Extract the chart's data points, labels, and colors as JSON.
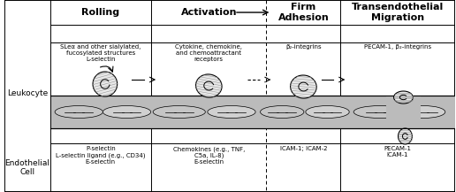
{
  "fig_width": 5.16,
  "fig_height": 2.17,
  "dpi": 100,
  "bg_color": "#ffffff",
  "header_titles": [
    "Rolling",
    "Activation",
    "Firm\nAdhesion",
    "Transendothelial\nMigration"
  ],
  "leukocyte_labels": [
    "SLeα and other sialylated,\nfucosylated structures\nL-selectin",
    "Cytokine, chemokine,\nand chemoattractant\nreceptors",
    "β₂-integrins",
    "PECAM-1, β₂-integrins"
  ],
  "endothelial_labels": [
    "P-selectin\nL-selectin ligand (e.g., CD34)\nE-selectin",
    "Chemokines (e.g., TNF,\nC5a, IL-8)\nE-selectin",
    "ICAM-1; ICAM-2",
    "PECAM-1\nICAM-1"
  ],
  "row_label_leukocyte": "Leukocyte",
  "row_label_endothelial": "Endothelial\nCell",
  "vessel_gray": "#b8b8b8",
  "vessel_light": "#d8d8d8",
  "cell_tile_color": "#c0c0c0",
  "leuko_fill": "#e8e8e8",
  "leuko_hatch": "#888888"
}
